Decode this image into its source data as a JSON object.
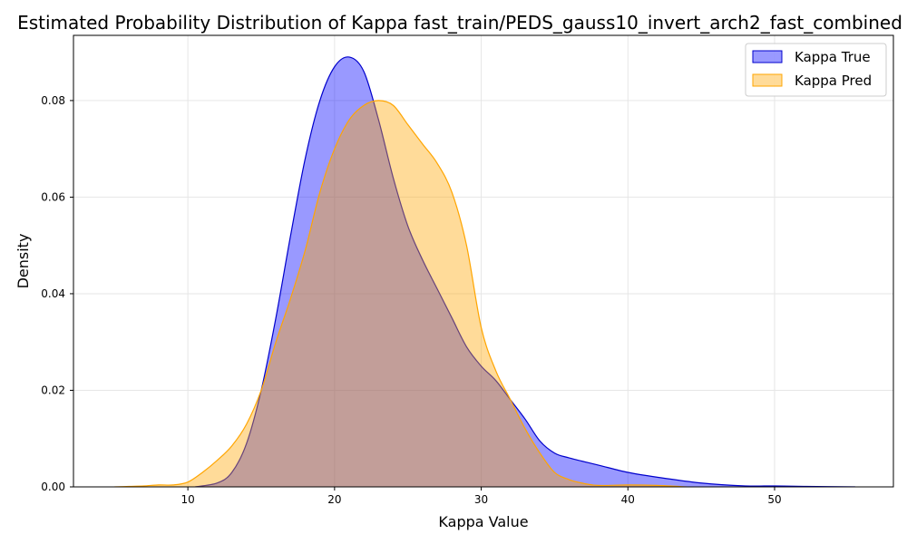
{
  "chart_data": {
    "type": "area",
    "title": "Estimated Probability Distribution of Kappa fast_train/PEDS_gauss10_invert_arch2_fast_combined",
    "xlabel": "Kappa Value",
    "ylabel": "Density",
    "xlim": [
      2.2,
      58.1
    ],
    "ylim": [
      0,
      0.0935
    ],
    "xticks": [
      10,
      20,
      30,
      40,
      50
    ],
    "yticks": [
      0.0,
      0.02,
      0.04,
      0.06,
      0.08
    ],
    "xtick_labels": [
      "10",
      "20",
      "30",
      "40",
      "50"
    ],
    "ytick_labels": [
      "0.00",
      "0.02",
      "0.04",
      "0.06",
      "0.08"
    ],
    "grid": true,
    "legend_position": "top-right",
    "series": [
      {
        "name": "Kappa True",
        "fill_color": "#0000ff",
        "fill_opacity": 0.4,
        "line_color": "#0000cc",
        "x": [
          10.5,
          12,
          13,
          14,
          15,
          16,
          17,
          18,
          19,
          20,
          21,
          22,
          23,
          24,
          25,
          26,
          27,
          28,
          29,
          30,
          31,
          32,
          33,
          34,
          35,
          36,
          38,
          40,
          42,
          45,
          48,
          50,
          52,
          55.5
        ],
        "y": [
          0.0,
          0.0008,
          0.003,
          0.009,
          0.02,
          0.035,
          0.052,
          0.068,
          0.08,
          0.087,
          0.089,
          0.086,
          0.076,
          0.064,
          0.054,
          0.047,
          0.041,
          0.035,
          0.029,
          0.025,
          0.022,
          0.018,
          0.014,
          0.0095,
          0.007,
          0.006,
          0.0045,
          0.003,
          0.002,
          0.0008,
          0.0002,
          0.0002,
          0.0001,
          0.0
        ]
      },
      {
        "name": "Kappa Pred",
        "fill_color": "#ffa500",
        "fill_opacity": 0.4,
        "line_color": "#ffa500",
        "x": [
          5,
          6,
          7,
          8,
          9,
          10,
          11,
          12,
          13,
          14,
          15,
          16,
          17,
          18,
          19,
          20,
          21,
          22,
          23,
          24,
          25,
          26,
          27,
          28,
          29,
          30,
          31,
          32,
          33,
          34,
          35,
          36,
          37,
          38,
          40,
          42,
          44
        ],
        "y": [
          0.0,
          0.0001,
          0.0002,
          0.0004,
          0.0004,
          0.001,
          0.003,
          0.0055,
          0.0085,
          0.013,
          0.02,
          0.03,
          0.039,
          0.049,
          0.061,
          0.07,
          0.076,
          0.079,
          0.08,
          0.079,
          0.075,
          0.071,
          0.067,
          0.061,
          0.05,
          0.033,
          0.024,
          0.018,
          0.012,
          0.007,
          0.003,
          0.0015,
          0.0007,
          0.0003,
          0.0004,
          0.0003,
          0.0
        ]
      }
    ]
  }
}
